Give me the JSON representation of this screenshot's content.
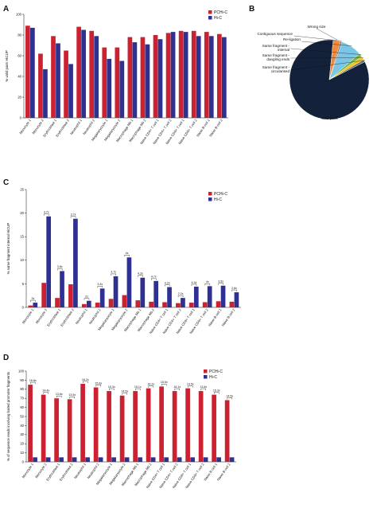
{
  "colors": {
    "pchic": "#cc2130",
    "hic": "#2e3192",
    "pie_valid": "#14213a",
    "pie_reads": "#f08a3c",
    "pie_religation": "#7bc6e6",
    "pie_internal": "#7ab847",
    "pie_dangling": "#f0c419",
    "pie_circular": "#6c6c6c"
  },
  "panels": {
    "a": "A",
    "b": "B",
    "c": "C",
    "d": "D"
  },
  "chart_data": [
    {
      "id": "A",
      "type": "bar",
      "ylabel": "% valid pairs HiCUP",
      "ylim": [
        0,
        100
      ],
      "yticks": [
        0,
        20,
        40,
        60,
        80,
        100
      ],
      "categories": [
        "Monocyte 1",
        "Monocyte 2",
        "Erythroblast 1",
        "Erythroblast 2",
        "Neutrophil 1",
        "Neutrophil 2",
        "Megakaryocyte 1",
        "Megakaryocyte 2",
        "Macrophage M0 1",
        "Macrophage M0 2",
        "Naive CD4+ T cell 1",
        "Naive CD4+ T cell 2",
        "Naive CD8+ T cell 1",
        "Naive CD8+ T cell 2",
        "Naive B cell 1",
        "Naive B cell 2"
      ],
      "series": [
        {
          "name": "PCHi-C",
          "values": [
            89,
            62,
            79,
            65,
            88,
            84,
            68,
            68,
            78,
            78,
            80,
            82,
            84,
            84,
            83,
            81
          ]
        },
        {
          "name": "Hi-C",
          "values": [
            87,
            47,
            72,
            52,
            85,
            79,
            57,
            55,
            73,
            71,
            76,
            83,
            83,
            79,
            79,
            78
          ]
        }
      ],
      "legend": [
        "PCHi-C",
        "Hi-C"
      ],
      "legend_position": "top-right"
    },
    {
      "id": "B",
      "type": "pie",
      "labels": [
        "Valid pairs",
        "Wrong size",
        "Contiguous sequence",
        "Re-ligation",
        "Same fragment - internal",
        "Same fragment - dangling ends",
        "Same fragment - circularised"
      ],
      "values": [
        84,
        3,
        0.6,
        8.5,
        1.5,
        1.5,
        0.9
      ]
    },
    {
      "id": "C",
      "type": "bar",
      "ylabel": "% same fragment internal HiCUP",
      "ylim": [
        0,
        25
      ],
      "yticks": [
        0,
        5,
        10,
        15,
        20,
        25
      ],
      "categories": [
        "Monocyte 1",
        "Monocyte 2",
        "Erythroblast 1",
        "Erythroblast 2",
        "Neutrophil 1",
        "Neutrophil 2",
        "Megakaryocyte 1",
        "Megakaryocyte 2",
        "Macrophage M0 1",
        "Macrophage M0 2",
        "Naive CD4+ T cell 1",
        "Naive CD4+ T cell 2",
        "Naive CD8+ T cell 1",
        "Naive CD8+ T cell 2",
        "Naive B cell 1",
        "Naive B cell 2"
      ],
      "series": [
        {
          "name": "PCHi-C",
          "values": [
            0.4,
            5.2,
            2.0,
            4.9,
            0.7,
            1.0,
            1.8,
            2.6,
            1.5,
            1.2,
            1.1,
            0.9,
            1.0,
            1.1,
            1.3,
            1.2
          ]
        },
        {
          "name": "Hi-C",
          "values": [
            1.0,
            19.3,
            7.7,
            18.8,
            1.4,
            4.0,
            6.6,
            10.6,
            6.3,
            5.6,
            4.3,
            2.0,
            4.4,
            4.5,
            4.6,
            3.2
          ]
        }
      ],
      "annotations": [
        "3x",
        "3.7x",
        "3.8x",
        "3.7x",
        "2x",
        "3.4x",
        "3.7x",
        "4x",
        "4.3x",
        "4.7x",
        "4.2x",
        "2.2x",
        "4.3x",
        "4x",
        "3.5x",
        "2.6x"
      ],
      "legend": [
        "PCHi-C",
        "Hi-C"
      ],
      "legend_position": "top-right"
    },
    {
      "id": "D",
      "type": "bar",
      "ylabel": "% of sequence reads involving baited promoter fragments",
      "ylim": [
        0,
        100
      ],
      "yticks": [
        0,
        10,
        20,
        30,
        40,
        50,
        60,
        70,
        80,
        90,
        100
      ],
      "categories": [
        "Monocyte 1",
        "Monocyte 2",
        "Erythroblast 1",
        "Erythroblast 2",
        "Neutrophil 1",
        "Neutrophil 2",
        "Megakaryocyte 1",
        "Megakaryocyte 2",
        "Macrophage M0 1",
        "Macrophage M0 2",
        "Naive CD4+ T cell 1",
        "Naive CD4+ T cell 2",
        "Naive CD8+ T cell 1",
        "Naive CD8+ T cell 2",
        "Naive B cell 1",
        "Naive B cell 2"
      ],
      "series": [
        {
          "name": "PCHi-C",
          "values": [
            85,
            74,
            70,
            69,
            86,
            82,
            78,
            73,
            78,
            81,
            83,
            78,
            81,
            78,
            74,
            68
          ]
        },
        {
          "name": "Hi-C",
          "values": [
            5,
            5,
            5,
            5,
            5,
            5,
            5,
            5,
            5,
            5,
            5,
            5,
            5,
            5,
            5,
            5
          ]
        }
      ],
      "annotations": [
        "16.8x",
        "14.4x",
        "13.6x",
        "13.5x",
        "16.2x",
        "15.8x",
        "15.3x",
        "14.5x",
        "15.1x",
        "16.2x",
        "15.5x",
        "16.1x",
        "14.5x",
        "13.8x",
        "15.3x",
        "14.5x"
      ],
      "legend": [
        "PCHi-C",
        "Hi-C"
      ],
      "legend_position": "top-right"
    }
  ]
}
